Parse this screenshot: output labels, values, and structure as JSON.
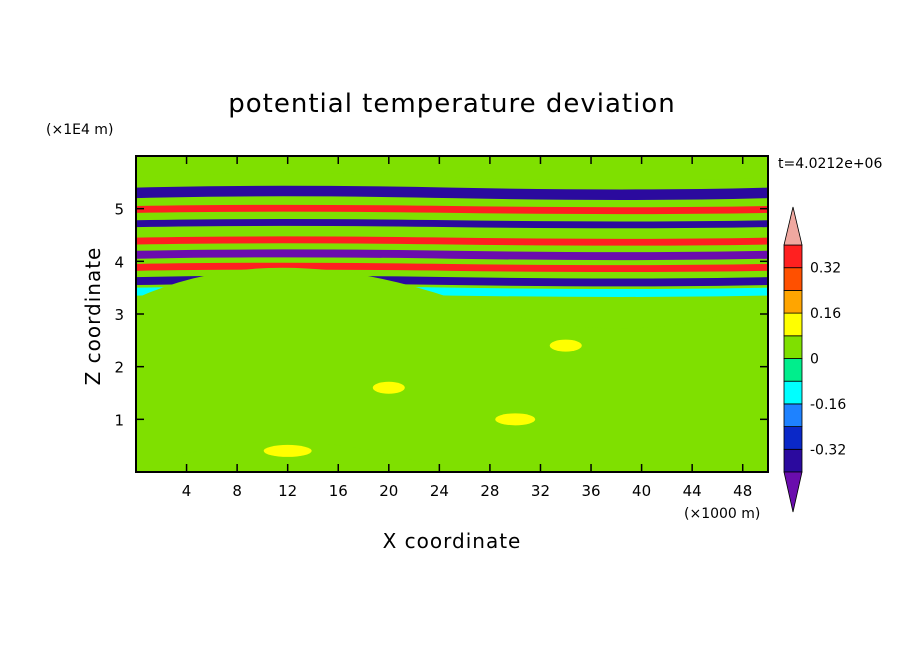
{
  "chart_data": {
    "type": "heatmap",
    "title": "potential temperature deviation",
    "xlabel": "X coordinate",
    "ylabel": "Z coordinate",
    "x_unit": "(×1000 m)",
    "y_unit": "(×1E4 m)",
    "time_label": "t=4.0212e+06",
    "xlim": [
      0,
      50
    ],
    "ylim": [
      0,
      6
    ],
    "x_ticks": [
      4,
      8,
      12,
      16,
      20,
      24,
      28,
      32,
      36,
      40,
      44,
      48
    ],
    "y_ticks": [
      1,
      2,
      3,
      4,
      5
    ],
    "x_tick_labels": [
      "4",
      "8",
      "12",
      "16",
      "20",
      "24",
      "28",
      "32",
      "36",
      "40",
      "44",
      "48"
    ],
    "y_tick_labels": [
      "1",
      "2",
      "3",
      "4",
      "5"
    ],
    "levels": [
      -0.4,
      -0.32,
      -0.24,
      -0.16,
      -0.08,
      0,
      0.08,
      0.16,
      0.24,
      0.32,
      0.4
    ],
    "colorbar_labels": [
      "0.32",
      "0.16",
      "0",
      "-0.16",
      "-0.32"
    ],
    "colorbar_label_values": [
      0.32,
      0.16,
      0,
      -0.16,
      -0.32
    ],
    "colors": [
      "#6a0dad",
      "#2b0a9e",
      "#0a28c8",
      "#1e82ff",
      "#00ffff",
      "#00ee8c",
      "#7fe000",
      "#ffff00",
      "#ffa500",
      "#ff5000",
      "#ff2020",
      "#f0a8a0"
    ],
    "bands": [
      {
        "z_top": 6.0,
        "z_bottom": 5.6,
        "value": 0.0
      },
      {
        "z_top": 5.4,
        "z_bottom": 5.2,
        "value": -0.35
      },
      {
        "z_top": 5.05,
        "z_bottom": 4.92,
        "value": 0.38
      },
      {
        "z_top": 4.78,
        "z_bottom": 4.65,
        "value": -0.38
      },
      {
        "z_top": 4.45,
        "z_bottom": 4.32,
        "value": 0.38
      },
      {
        "z_top": 4.2,
        "z_bottom": 4.05,
        "value": -0.42
      },
      {
        "z_top": 3.95,
        "z_bottom": 3.82,
        "value": 0.38
      },
      {
        "z_top": 3.7,
        "z_bottom": 3.55,
        "value": -0.38
      },
      {
        "z_top": 3.5,
        "z_bottom": 3.35,
        "value": -0.12
      },
      {
        "z_top": 3.3,
        "z_bottom": 0.0,
        "value": 0.03
      }
    ]
  }
}
